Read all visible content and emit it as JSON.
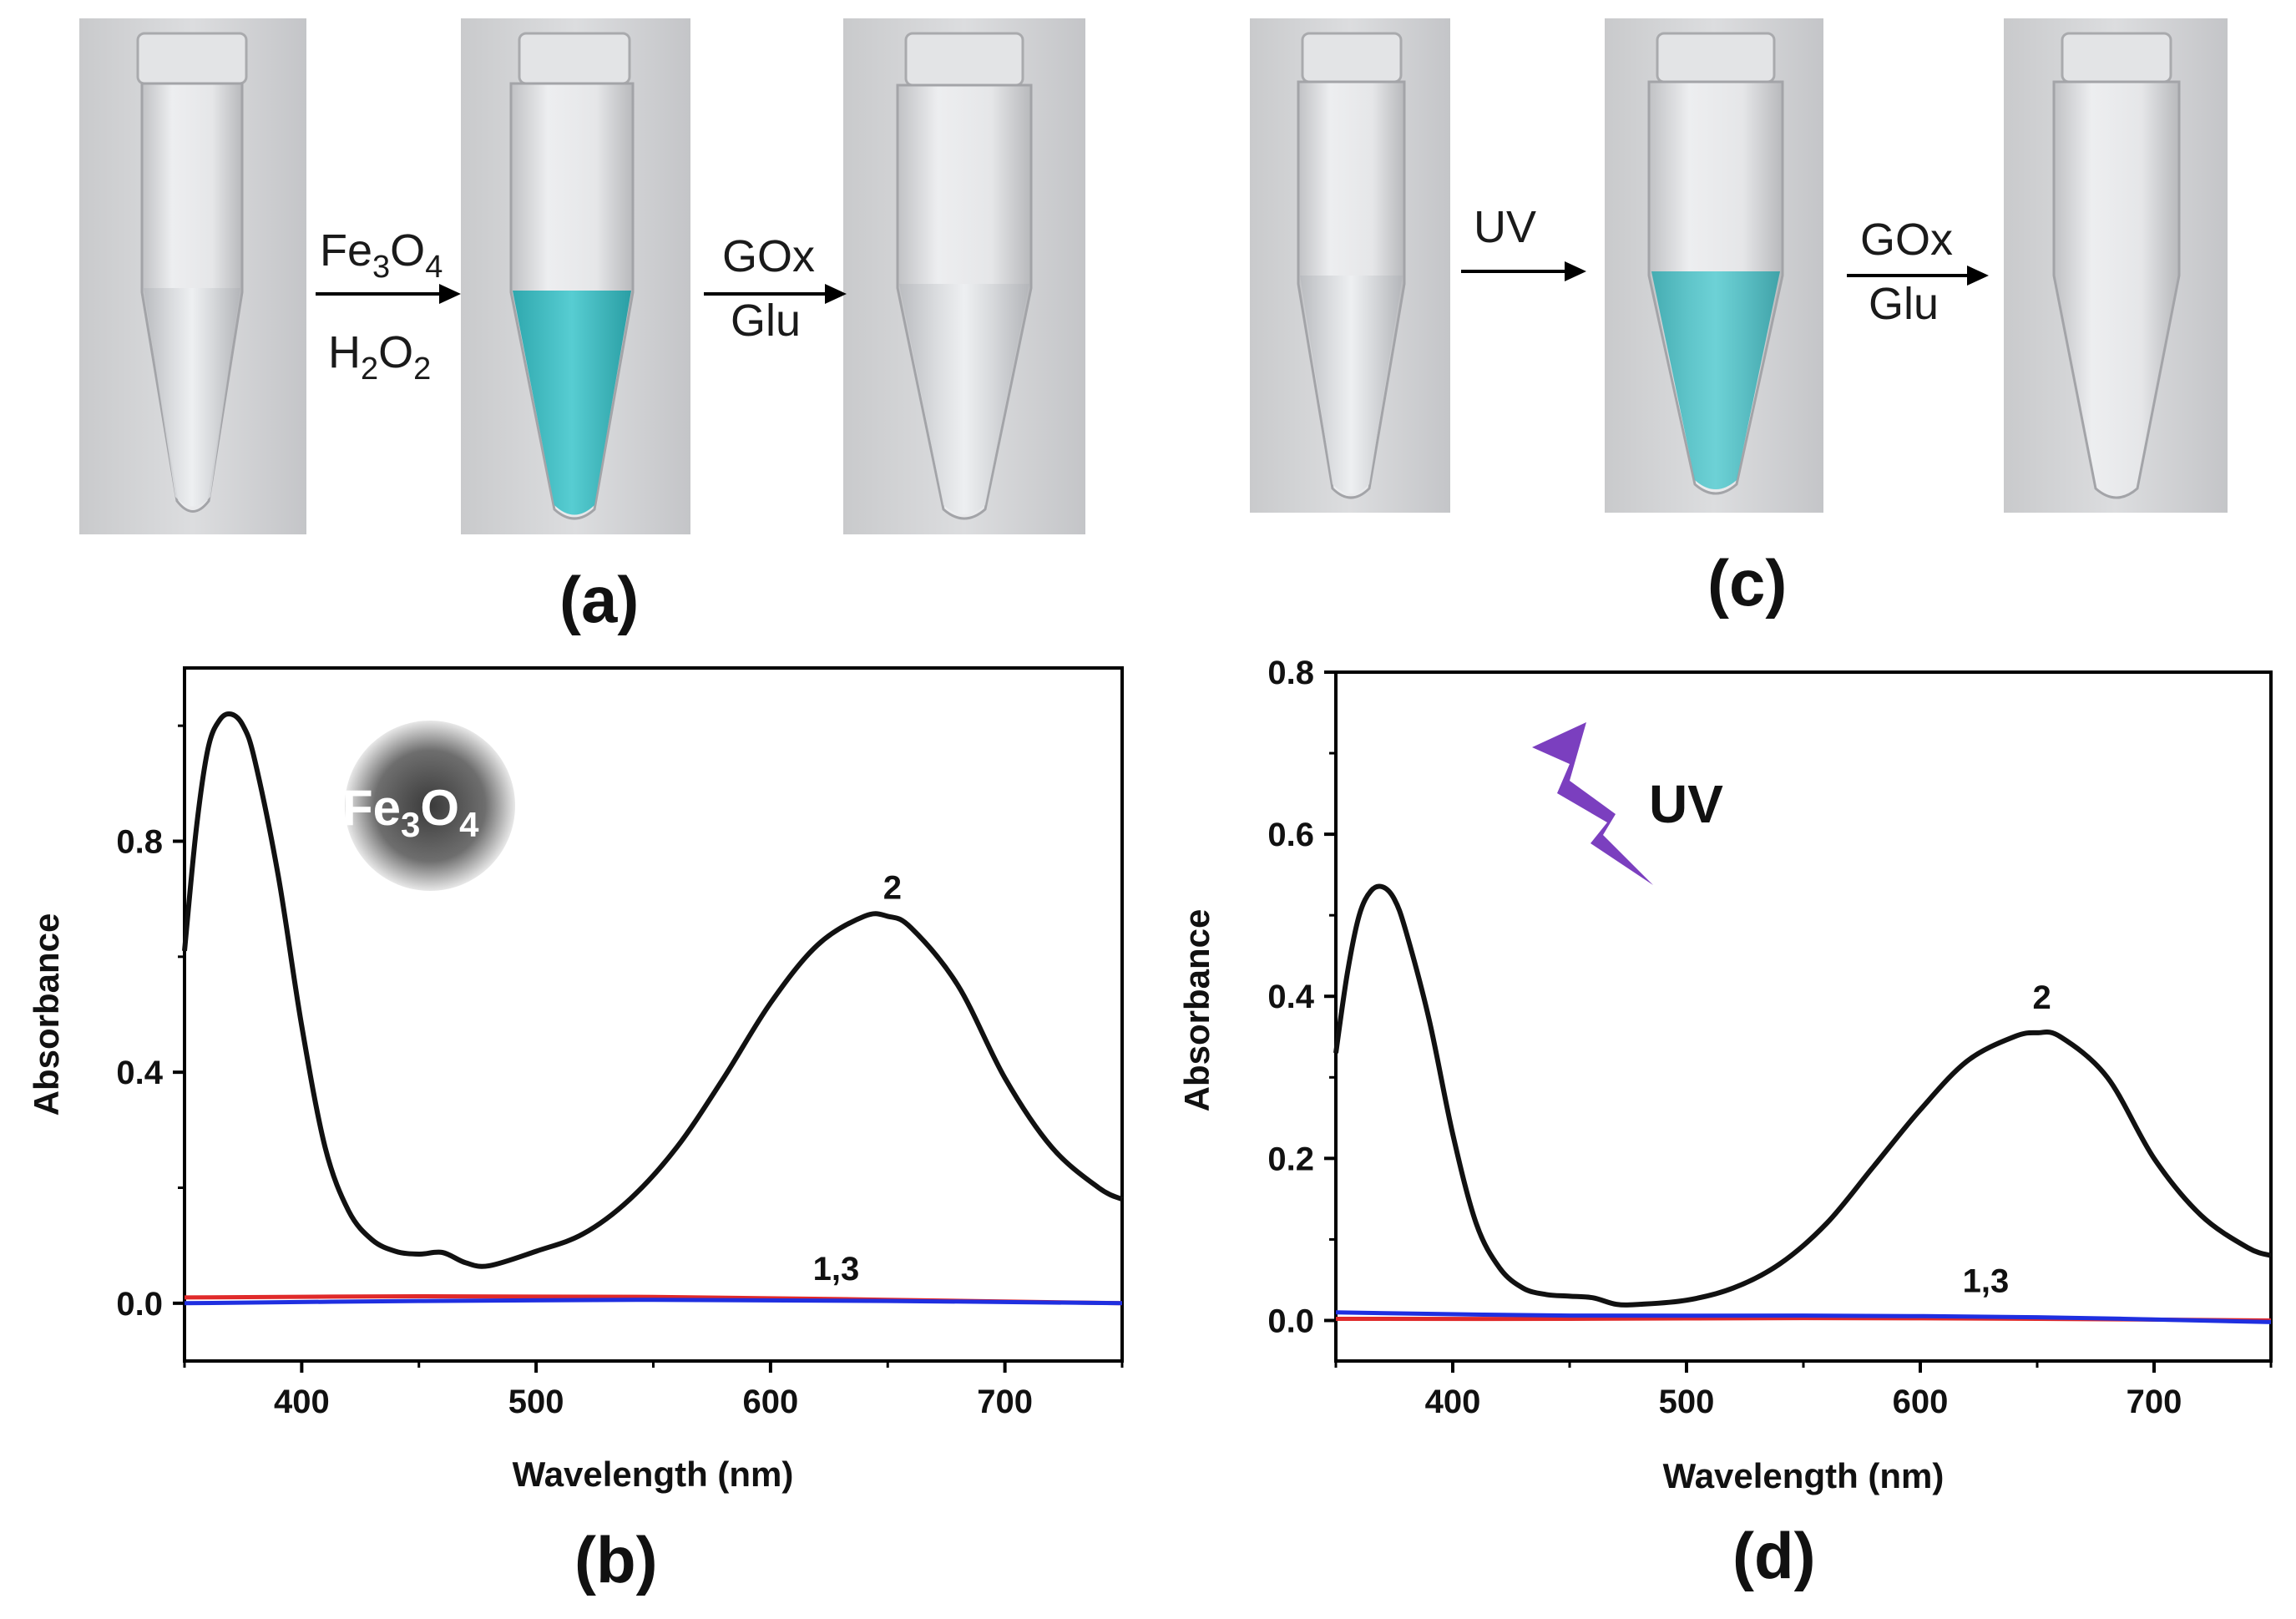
{
  "panel_a": {
    "label": "(a)",
    "arrow1_top": {
      "main": "Fe",
      "sub1": "3",
      "mid": "O",
      "sub2": "4"
    },
    "arrow1_bottom": {
      "main": "H",
      "sub1": "2",
      "mid": "O",
      "sub2": "2"
    },
    "arrow2_top": "GOx",
    "arrow2_bottom": "Glu"
  },
  "panel_c": {
    "label": "(c)",
    "arrow1_top": "UV",
    "arrow2_top": "GOx",
    "arrow2_bottom": "Glu"
  },
  "panel_b": {
    "label": "(b)",
    "badge": {
      "main": "Fe",
      "sub1": "3",
      "mid": "O",
      "sub2": "4"
    }
  },
  "panel_d": {
    "label": "(d)",
    "badge_text": "UV"
  },
  "colors": {
    "curve_2": "#111111",
    "curve_1": "#e02a2a",
    "curve_3": "#1f2fe0",
    "solution_blue": "#3fbcc2",
    "uv_bolt": "#7b3fbf"
  },
  "chart_data": [
    {
      "id": "b",
      "type": "line",
      "xlabel": "Wavelength (nm)",
      "ylabel": "Absorbance",
      "xlim": [
        350,
        750
      ],
      "ylim": [
        -0.1,
        1.1
      ],
      "xticks": [
        400,
        500,
        600,
        700
      ],
      "yticks": [
        0.0,
        0.4,
        0.8
      ],
      "ytick_labels": [
        "0.0",
        "0.4",
        "0.8"
      ],
      "series": [
        {
          "name": "2",
          "color": "#111111",
          "x": [
            350,
            355,
            360,
            365,
            370,
            375,
            380,
            390,
            400,
            410,
            420,
            430,
            440,
            450,
            460,
            470,
            480,
            500,
            520,
            540,
            560,
            580,
            600,
            620,
            640,
            650,
            660,
            680,
            700,
            720,
            740,
            750
          ],
          "y": [
            0.61,
            0.82,
            0.96,
            1.01,
            1.02,
            1.0,
            0.94,
            0.74,
            0.48,
            0.27,
            0.16,
            0.11,
            0.09,
            0.085,
            0.088,
            0.07,
            0.065,
            0.09,
            0.12,
            0.18,
            0.27,
            0.39,
            0.52,
            0.62,
            0.67,
            0.67,
            0.65,
            0.55,
            0.39,
            0.27,
            0.2,
            0.18
          ]
        },
        {
          "name": "1",
          "color": "#e02a2a",
          "x": [
            350,
            450,
            550,
            650,
            750
          ],
          "y": [
            0.01,
            0.012,
            0.011,
            0.006,
            0.0
          ]
        },
        {
          "name": "3",
          "color": "#1f2fe0",
          "x": [
            350,
            450,
            550,
            650,
            750
          ],
          "y": [
            0.0,
            0.004,
            0.006,
            0.004,
            0.0
          ]
        }
      ],
      "annotations": [
        {
          "text": "2",
          "x": 652,
          "y": 0.7
        },
        {
          "text": "1,3",
          "x": 628,
          "y": 0.04
        }
      ]
    },
    {
      "id": "d",
      "type": "line",
      "xlabel": "Wavelength (nm)",
      "ylabel": "Absorbance",
      "xlim": [
        350,
        750
      ],
      "ylim": [
        -0.05,
        0.8
      ],
      "xticks": [
        400,
        500,
        600,
        700
      ],
      "yticks": [
        0.0,
        0.2,
        0.4,
        0.6,
        0.8
      ],
      "ytick_labels": [
        "0.0",
        "0.2",
        "0.4",
        "0.6",
        "0.8"
      ],
      "series": [
        {
          "name": "2",
          "color": "#111111",
          "x": [
            350,
            355,
            360,
            365,
            370,
            375,
            380,
            390,
            400,
            410,
            420,
            430,
            440,
            450,
            460,
            470,
            480,
            500,
            520,
            540,
            560,
            580,
            600,
            620,
            640,
            650,
            660,
            680,
            700,
            720,
            740,
            750
          ],
          "y": [
            0.33,
            0.43,
            0.5,
            0.53,
            0.535,
            0.52,
            0.48,
            0.37,
            0.23,
            0.12,
            0.065,
            0.04,
            0.032,
            0.03,
            0.028,
            0.02,
            0.02,
            0.025,
            0.04,
            0.07,
            0.12,
            0.19,
            0.26,
            0.32,
            0.35,
            0.355,
            0.35,
            0.3,
            0.2,
            0.13,
            0.09,
            0.08
          ]
        },
        {
          "name": "1",
          "color": "#e02a2a",
          "x": [
            350,
            450,
            550,
            650,
            750
          ],
          "y": [
            0.002,
            0.002,
            0.003,
            0.002,
            0.0
          ]
        },
        {
          "name": "3",
          "color": "#1f2fe0",
          "x": [
            350,
            450,
            550,
            650,
            750
          ],
          "y": [
            0.01,
            0.006,
            0.006,
            0.004,
            -0.002
          ]
        }
      ],
      "annotations": [
        {
          "text": "2",
          "x": 652,
          "y": 0.385
        },
        {
          "text": "1,3",
          "x": 628,
          "y": 0.035
        }
      ]
    }
  ]
}
